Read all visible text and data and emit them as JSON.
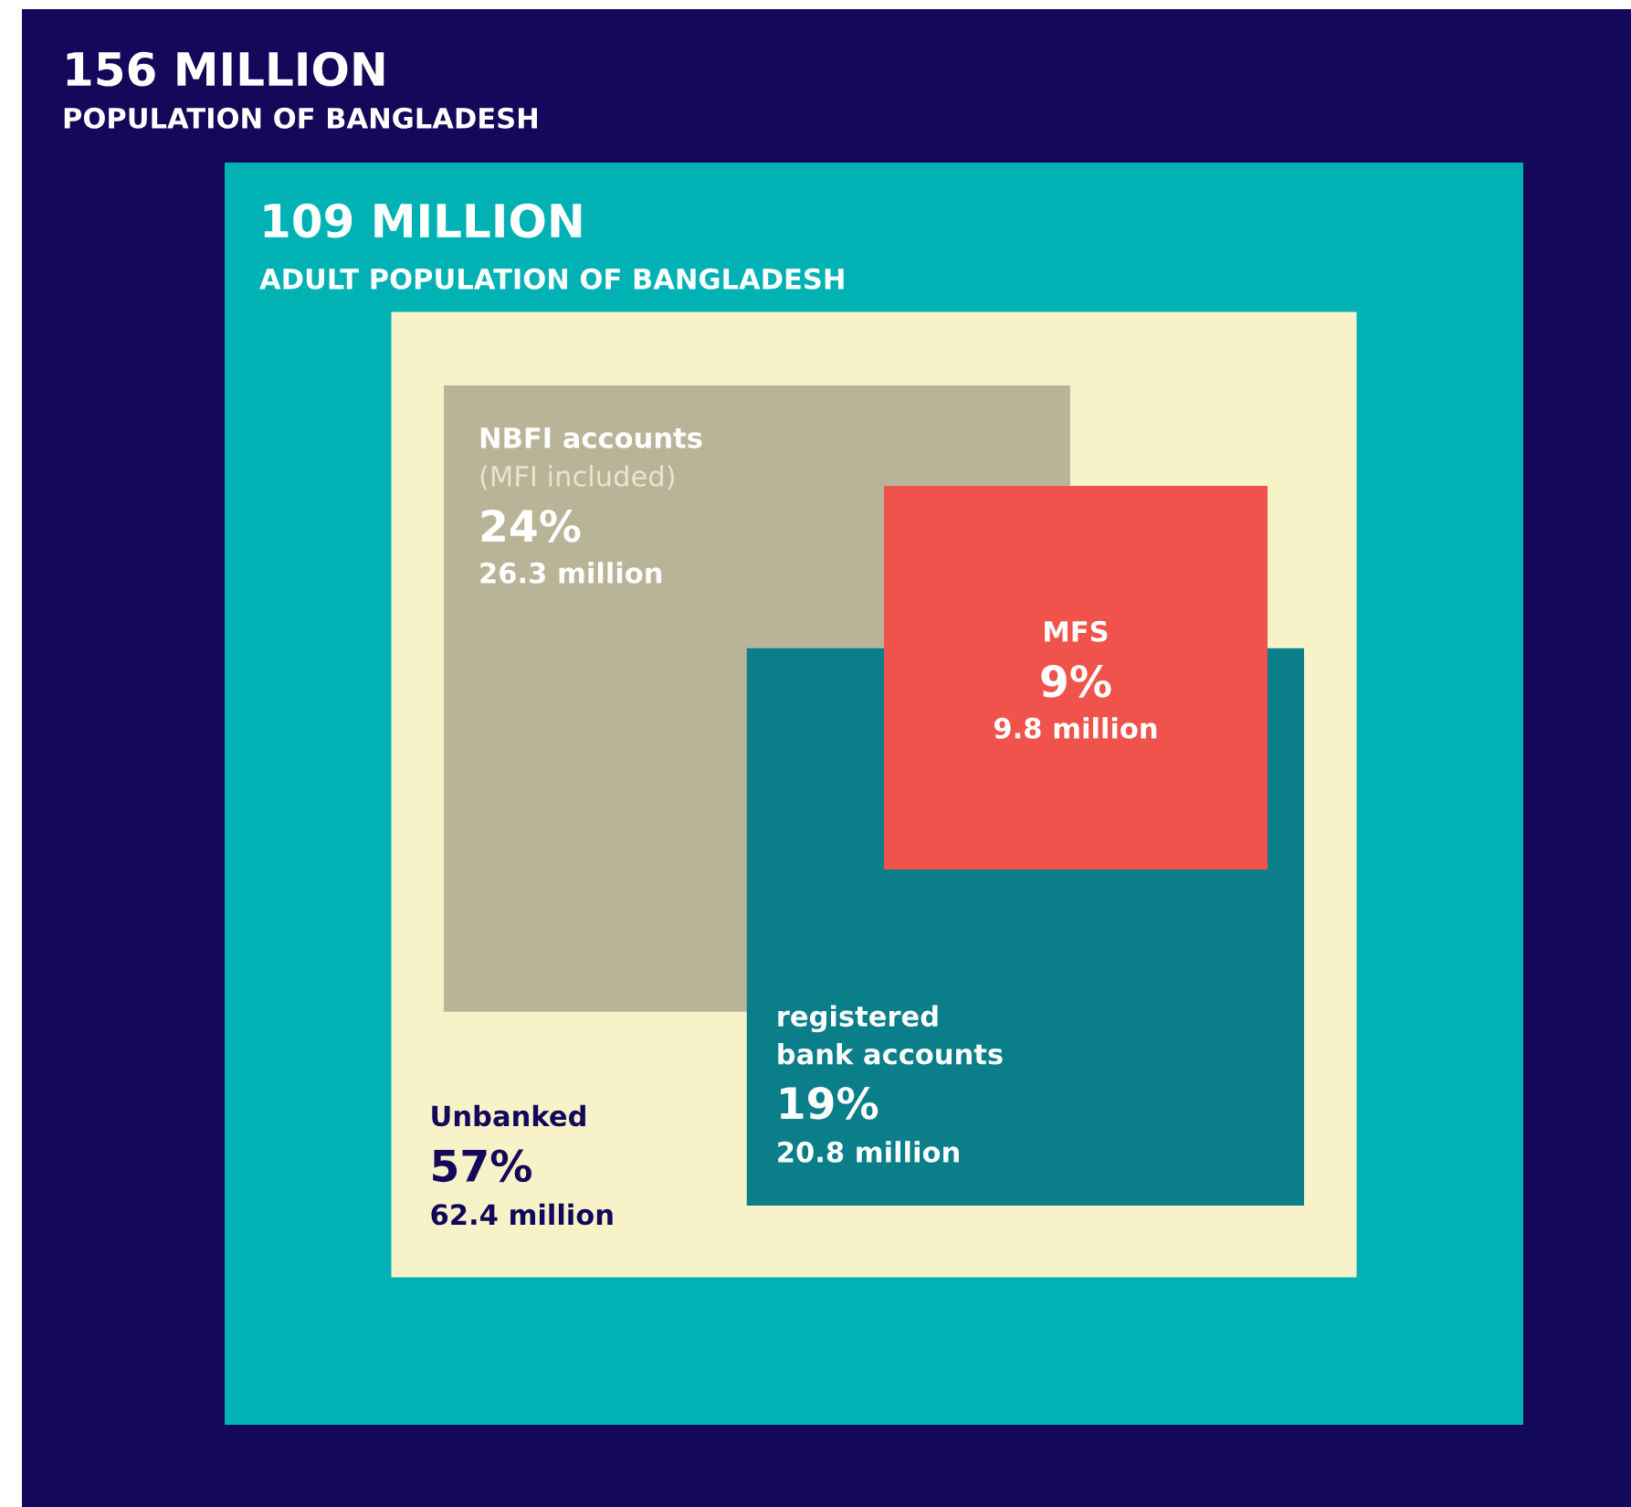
{
  "chart_data": {
    "type": "other",
    "title": "156 MILLION",
    "subtitle": "POPULATION OF BANGLADESH",
    "categories": [
      "NBFI accounts",
      "MFS",
      "registered\nbank accounts",
      "Unbanked"
    ],
    "values": [
      24,
      9,
      19,
      57
    ],
    "value_labels": [
      "24%",
      "9%",
      "19%",
      "57%"
    ],
    "colors": [
      "#b9b497",
      "#f0534c",
      "#0a7f8a",
      "#f8f2c8"
    ],
    "annotations": [
      "109 MILLION",
      "ADULT POPULATION OF BANGLADESH",
      "(MFI included)",
      "26.3 million",
      "9.8 million",
      "20.8 million",
      "62.4 million"
    ]
  }
}
